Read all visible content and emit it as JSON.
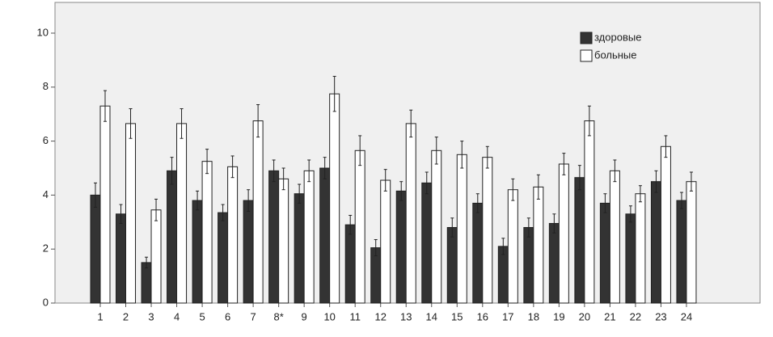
{
  "chart_data": {
    "type": "bar",
    "categories": [
      "1",
      "2",
      "3",
      "4",
      "5",
      "6",
      "7",
      "8*",
      "9",
      "10",
      "11",
      "12",
      "13",
      "14",
      "15",
      "16",
      "17",
      "18",
      "19",
      "20",
      "21",
      "22",
      "23",
      "24"
    ],
    "series": [
      {
        "name": "здоровые",
        "color": "#333333",
        "values": [
          4.0,
          3.3,
          1.5,
          4.9,
          3.8,
          3.35,
          3.8,
          4.9,
          4.05,
          5.0,
          2.9,
          2.05,
          4.15,
          4.45,
          2.8,
          3.7,
          2.1,
          2.8,
          2.95,
          4.65,
          3.7,
          3.3,
          4.5,
          3.8
        ],
        "errors": [
          0.45,
          0.35,
          0.2,
          0.5,
          0.35,
          0.3,
          0.4,
          0.4,
          0.35,
          0.4,
          0.35,
          0.3,
          0.35,
          0.4,
          0.35,
          0.35,
          0.3,
          0.35,
          0.35,
          0.45,
          0.35,
          0.3,
          0.4,
          0.3
        ]
      },
      {
        "name": "больные",
        "color": "#ffffff",
        "values": [
          7.3,
          6.65,
          3.45,
          6.65,
          5.25,
          5.05,
          6.75,
          4.6,
          4.9,
          7.75,
          5.65,
          4.55,
          6.65,
          5.65,
          5.5,
          5.4,
          4.2,
          4.3,
          5.15,
          6.75,
          4.9,
          4.05,
          5.8,
          4.5
        ],
        "errors": [
          0.57,
          0.55,
          0.4,
          0.55,
          0.45,
          0.4,
          0.6,
          0.4,
          0.4,
          0.65,
          0.55,
          0.4,
          0.5,
          0.5,
          0.5,
          0.4,
          0.4,
          0.45,
          0.4,
          0.55,
          0.4,
          0.3,
          0.4,
          0.35
        ]
      }
    ],
    "ylim": [
      0,
      10
    ],
    "yticks": [
      0,
      2,
      4,
      6,
      8,
      10
    ],
    "legend": "upper right"
  }
}
